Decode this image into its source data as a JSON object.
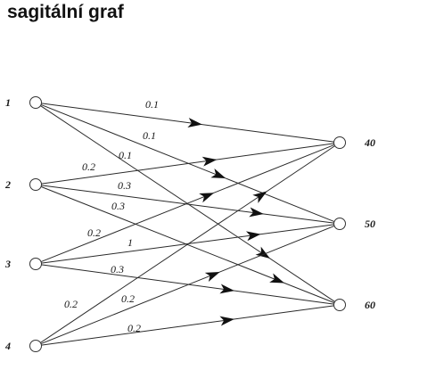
{
  "title": "sagitální graf",
  "nodes": {
    "left": [
      {
        "id": "1",
        "label": "1"
      },
      {
        "id": "2",
        "label": "2"
      },
      {
        "id": "3",
        "label": "3"
      },
      {
        "id": "4",
        "label": "4"
      }
    ],
    "right": [
      {
        "id": "40",
        "label": "40"
      },
      {
        "id": "50",
        "label": "50"
      },
      {
        "id": "60",
        "label": "60"
      }
    ]
  },
  "edges": [
    {
      "from": "1",
      "to": "40",
      "weight": "0.1"
    },
    {
      "from": "1",
      "to": "50",
      "weight": "0.1"
    },
    {
      "from": "1",
      "to": "60",
      "weight": "0.1"
    },
    {
      "from": "2",
      "to": "40",
      "weight": "0.2"
    },
    {
      "from": "2",
      "to": "50",
      "weight": "0.3"
    },
    {
      "from": "2",
      "to": "60",
      "weight": "0.3"
    },
    {
      "from": "3",
      "to": "40",
      "weight": "0.2"
    },
    {
      "from": "3",
      "to": "50",
      "weight": "1"
    },
    {
      "from": "3",
      "to": "60",
      "weight": "0.3"
    },
    {
      "from": "4",
      "to": "40",
      "weight": "0.2"
    },
    {
      "from": "4",
      "to": "50",
      "weight": "0.2"
    },
    {
      "from": "4",
      "to": "60",
      "weight": "0.2"
    }
  ]
}
